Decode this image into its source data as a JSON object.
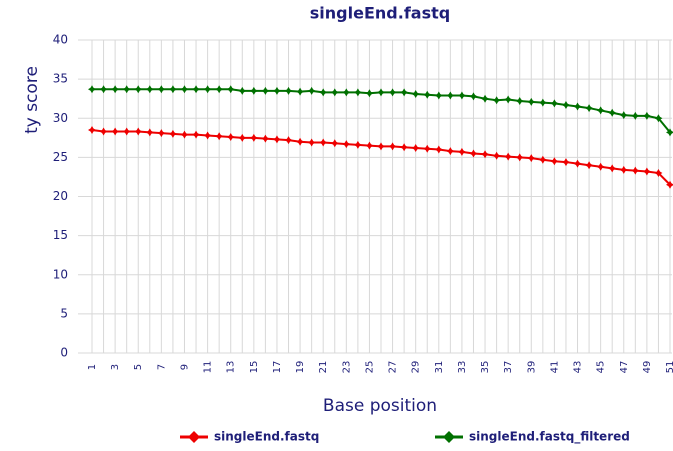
{
  "chart_data": {
    "type": "line",
    "title": "singleEnd.fastq",
    "x_label": "Base position",
    "y_label": "ty score",
    "categories": [
      "1",
      null,
      "3",
      null,
      "5",
      null,
      "7",
      null,
      "9",
      null,
      "11",
      null,
      "13",
      null,
      "15",
      null,
      "17",
      null,
      "19",
      null,
      "21",
      null,
      "23",
      null,
      "25",
      null,
      "27",
      null,
      "29",
      null,
      "31",
      null,
      "33",
      null,
      "35",
      null,
      "37",
      null,
      "39",
      null,
      "41",
      null,
      "43",
      null,
      "45",
      null,
      "47",
      null,
      "49",
      null,
      "51"
    ],
    "series": [
      {
        "name": "singleEnd.fastq",
        "color": "#ee0000",
        "values": [
          28.5,
          28.3,
          28.3,
          28.3,
          28.3,
          28.2,
          28.1,
          28.0,
          27.9,
          27.9,
          27.8,
          27.7,
          27.6,
          27.5,
          27.5,
          27.4,
          27.3,
          27.2,
          27.0,
          26.9,
          26.9,
          26.8,
          26.7,
          26.6,
          26.5,
          26.4,
          26.4,
          26.3,
          26.2,
          26.1,
          26.0,
          25.8,
          25.7,
          25.5,
          25.4,
          25.2,
          25.1,
          25.0,
          24.9,
          24.7,
          24.5,
          24.4,
          24.2,
          24.0,
          23.8,
          23.6,
          23.4,
          23.3,
          23.2,
          23.0,
          21.5
        ]
      },
      {
        "name": "singleEnd.fastq_filtered",
        "color": "#007000",
        "values": [
          33.7,
          33.7,
          33.7,
          33.7,
          33.7,
          33.7,
          33.7,
          33.7,
          33.7,
          33.7,
          33.7,
          33.7,
          33.7,
          33.5,
          33.5,
          33.5,
          33.5,
          33.5,
          33.4,
          33.5,
          33.3,
          33.3,
          33.3,
          33.3,
          33.2,
          33.3,
          33.3,
          33.3,
          33.1,
          33.0,
          32.9,
          32.9,
          32.9,
          32.8,
          32.5,
          32.3,
          32.4,
          32.2,
          32.1,
          32.0,
          31.9,
          31.7,
          31.5,
          31.3,
          31.0,
          30.7,
          30.4,
          30.3,
          30.3,
          30.0,
          28.2
        ]
      }
    ],
    "ylim": [
      0,
      40
    ],
    "yticks": [
      0,
      5,
      10,
      15,
      20,
      25,
      30,
      35,
      40
    ],
    "grid": true,
    "legend": "bottom"
  }
}
